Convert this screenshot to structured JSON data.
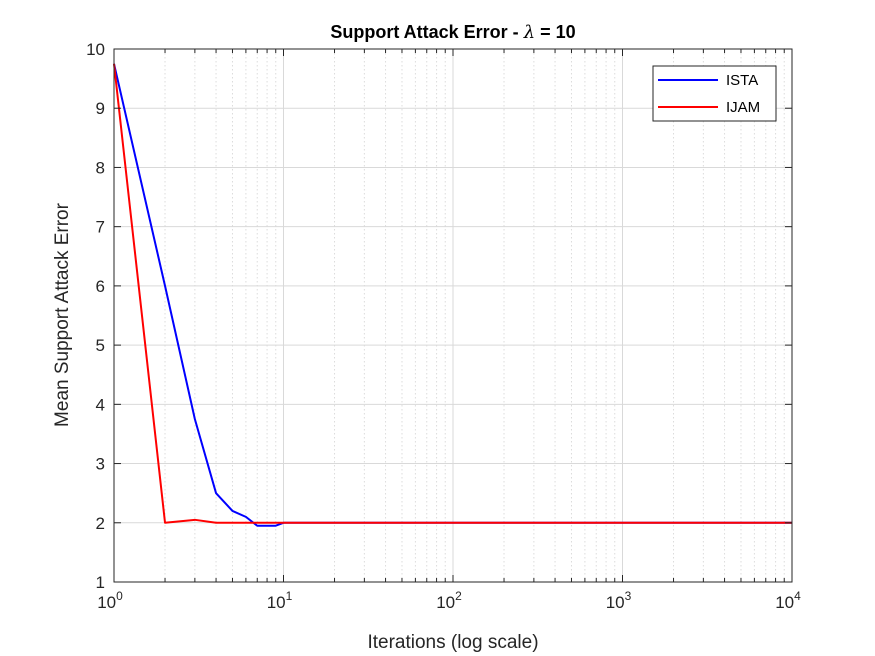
{
  "chart_data": {
    "type": "line",
    "title_prefix": "Support Attack Error - ",
    "title_symbol": "λ",
    "title_suffix": " = 10",
    "xlabel": "Iterations (log scale)",
    "ylabel": "Mean Support Attack Error",
    "xscale": "log",
    "xlim": [
      1,
      10000
    ],
    "ylim": [
      1,
      10
    ],
    "x_ticks": [
      {
        "base": "10",
        "exp": "0"
      },
      {
        "base": "10",
        "exp": "1"
      },
      {
        "base": "10",
        "exp": "2"
      },
      {
        "base": "10",
        "exp": "3"
      },
      {
        "base": "10",
        "exp": "4"
      }
    ],
    "y_ticks": [
      "1",
      "2",
      "3",
      "4",
      "5",
      "6",
      "7",
      "8",
      "9",
      "10"
    ],
    "grid": true,
    "legend_position": "top-right",
    "series": [
      {
        "name": "ISTA",
        "color": "#0000ff",
        "points": [
          [
            1,
            9.75
          ],
          [
            2,
            6.0
          ],
          [
            3,
            3.75
          ],
          [
            4,
            2.5
          ],
          [
            5,
            2.2
          ],
          [
            6,
            2.1
          ],
          [
            7,
            1.95
          ],
          [
            8,
            1.95
          ],
          [
            9,
            1.95
          ],
          [
            10,
            2.0
          ],
          [
            10000,
            2.0
          ]
        ]
      },
      {
        "name": "IJAM",
        "color": "#ff0000",
        "points": [
          [
            1,
            9.75
          ],
          [
            2,
            2.0
          ],
          [
            3,
            2.05
          ],
          [
            4,
            2.0
          ],
          [
            10000,
            2.0
          ]
        ]
      }
    ]
  }
}
